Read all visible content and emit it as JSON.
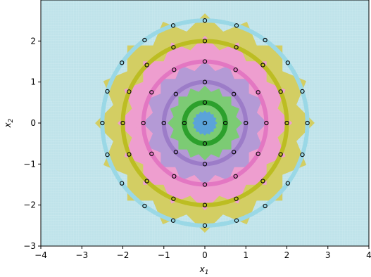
{
  "chart_data": {
    "type": "scatter",
    "title": "",
    "xlabel": "x",
    "xlabel_sub": "1",
    "ylabel": "x",
    "ylabel_sub": "2",
    "xlim": [
      -4,
      4
    ],
    "ylim": [
      -3,
      3
    ],
    "x_ticks": [
      "−4",
      "−3",
      "−2",
      "−1",
      "0",
      "1",
      "2",
      "3",
      "4"
    ],
    "x_tick_values": [
      -4,
      -3,
      -2,
      -1,
      0,
      1,
      2,
      3,
      4
    ],
    "y_ticks": [
      "−3",
      "−2",
      "−1",
      "0",
      "1",
      "2"
    ],
    "y_tick_values": [
      -3,
      -2,
      -1,
      0,
      1,
      2
    ],
    "background_color": "#bfe3ea",
    "grid": "fine background grid",
    "rings": [
      {
        "radius": 0.0,
        "points": 1,
        "region_color": "#5ba3d9",
        "region_halfwidth": 0.25,
        "circle_color": null
      },
      {
        "radius": 0.5,
        "points": 4,
        "region_color": "#7ccb74",
        "region_halfwidth": 0.75,
        "circle_color": "#2ca02c"
      },
      {
        "radius": 1.0,
        "points": 8,
        "region_color": "#b49ad6",
        "region_halfwidth": 1.25,
        "circle_color": "#9c7cc8"
      },
      {
        "radius": 1.5,
        "points": 12,
        "region_color": "#ee9ecf",
        "region_halfwidth": 1.75,
        "circle_color": "#e377c2"
      },
      {
        "radius": 2.0,
        "points": 16,
        "region_color": "#d3ce63",
        "region_halfwidth": 2.2,
        "circle_color": "#bcbd22"
      },
      {
        "radius": 2.5,
        "points": 20,
        "region_color": null,
        "region_halfwidth": 0,
        "circle_color": "#9ad8e6"
      }
    ],
    "marker_style": "open black circle"
  }
}
